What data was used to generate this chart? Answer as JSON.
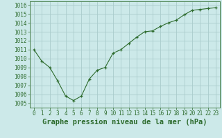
{
  "x": [
    0,
    1,
    2,
    3,
    4,
    5,
    6,
    7,
    8,
    9,
    10,
    11,
    12,
    13,
    14,
    15,
    16,
    17,
    18,
    19,
    20,
    21,
    22,
    23
  ],
  "y": [
    1011,
    1009.7,
    1009,
    1007.5,
    1005.8,
    1005.3,
    1005.8,
    1007.7,
    1008.7,
    1009.0,
    1010.6,
    1011.0,
    1011.7,
    1012.4,
    1013.0,
    1013.1,
    1013.6,
    1014.0,
    1014.3,
    1014.9,
    1015.4,
    1015.5,
    1015.6,
    1015.7
  ],
  "line_color": "#2d6b2d",
  "marker": "+",
  "bg_color": "#cce9e9",
  "grid_color": "#aacccc",
  "xlabel": "Graphe pression niveau de la mer (hPa)",
  "ylabel_ticks": [
    1005,
    1006,
    1007,
    1008,
    1009,
    1010,
    1011,
    1012,
    1013,
    1014,
    1015,
    1016
  ],
  "ylim": [
    1004.5,
    1016.4
  ],
  "xlim": [
    -0.5,
    23.5
  ],
  "xtick_labels": [
    "0",
    "1",
    "2",
    "3",
    "4",
    "5",
    "6",
    "7",
    "8",
    "9",
    "10",
    "11",
    "12",
    "13",
    "14",
    "15",
    "16",
    "17",
    "18",
    "19",
    "20",
    "21",
    "22",
    "23"
  ],
  "tick_fontsize": 5.5,
  "xlabel_fontsize": 7.5
}
